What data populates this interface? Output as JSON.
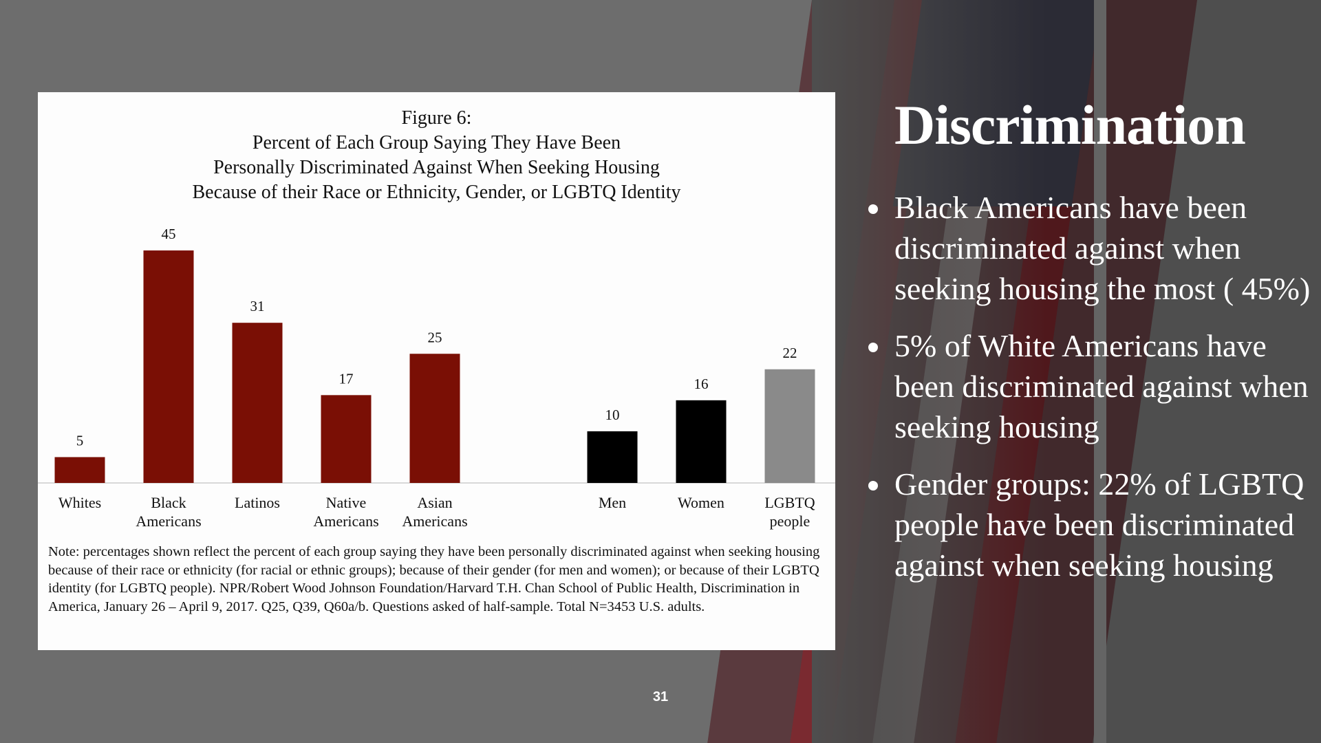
{
  "slide": {
    "title": "Discrimination",
    "bullets": [
      "Black Americans have been discriminated against when seeking housing the most ( 45%)",
      "5% of White Americans have been discriminated against when seeking housing",
      "Gender groups: 22% of LGBTQ people have been discriminated against when seeking housing"
    ],
    "page_number": "31"
  },
  "chart_data": {
    "type": "bar",
    "title": "Figure 6:",
    "subtitle": "Percent of Each Group Saying They Have Been\nPersonally Discriminated Against When Seeking Housing\nBecause of their Race or Ethnicity, Gender, or LGBTQ Identity",
    "categories": [
      "Whites",
      "Black\nAmericans",
      "Latinos",
      "Native\nAmericans",
      "Asian\nAmericans",
      null,
      "Men",
      "Women",
      "LGBTQ\npeople"
    ],
    "values": [
      5,
      45,
      31,
      17,
      25,
      null,
      10,
      16,
      22
    ],
    "colors": [
      "#7a0f05",
      "#7a0f05",
      "#7a0f05",
      "#7a0f05",
      "#7a0f05",
      null,
      "#000000",
      "#000000",
      "#8a8a8a"
    ],
    "note": "Note: percentages shown reflect the percent of each group saying they have been personally discriminated against when seeking housing because of their race or ethnicity (for racial or ethnic groups); because of their gender (for men and women); or because of their LGBTQ identity (for LGBTQ people). NPR/Robert Wood Johnson Foundation/Harvard T.H. Chan School of Public Health, Discrimination in America, January 26 – April 9, 2017. Q25, Q39, Q60a/b. Questions asked of half-sample. Total N=3453 U.S. adults."
  }
}
